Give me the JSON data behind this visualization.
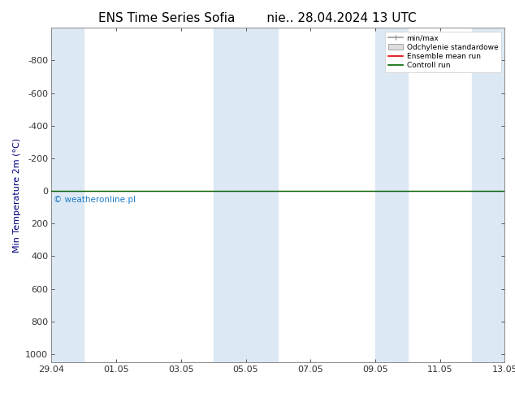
{
  "title": "ENS Time Series Sofia",
  "subtitle": "nie.. 28.04.2024 13 UTC",
  "ylabel": "Min Temperature 2m (°C)",
  "ylabel_color": "#000080",
  "background_color": "#ffffff",
  "plot_bg_color": "#ffffff",
  "yticks": [
    -800,
    -600,
    -400,
    -200,
    0,
    200,
    400,
    600,
    800,
    1000
  ],
  "ylim": [
    -1000,
    1050
  ],
  "xtick_labels": [
    "29.04",
    "01.05",
    "03.05",
    "05.05",
    "07.05",
    "09.05",
    "11.05",
    "13.05"
  ],
  "xlim": [
    0,
    7
  ],
  "legend_labels": [
    "min/max",
    "Odchylenie standardowe",
    "Ensemble mean run",
    "Controll run"
  ],
  "legend_colors": [
    "#aaaaaa",
    "#cccccc",
    "#dd0000",
    "#006600"
  ],
  "shaded_bands": [
    [
      0.0,
      0.5
    ],
    [
      2.5,
      3.5
    ],
    [
      5.0,
      5.5
    ],
    [
      6.5,
      7.0
    ]
  ],
  "shaded_color": "#dce9f5",
  "watermark": "© weatheronline.pl",
  "watermark_color": "#1e7bc4",
  "line_y": 0,
  "line_color_green": "#006600",
  "line_color_red": "#dd0000",
  "title_fontsize": 11,
  "axis_label_fontsize": 8,
  "tick_fontsize": 8
}
